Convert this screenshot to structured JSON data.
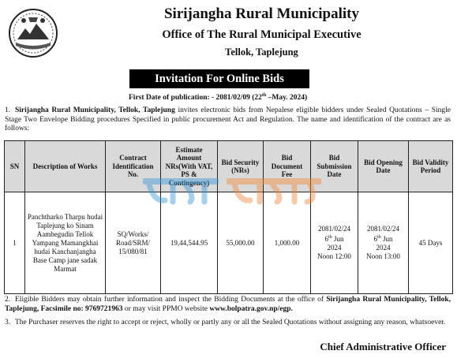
{
  "header": {
    "org_name": "Sirijangha Rural Municipality",
    "office": "Office of The Rural Municipal Executive",
    "location": "Tellok, Taplejung"
  },
  "banner": "Invitation For Online Bids",
  "publication": {
    "label": "First Date of   publication: - 2081/02/09 (22",
    "sup": "th",
    "rest": " –May.  2024)"
  },
  "para1": {
    "num": "1.",
    "bold": "Sirijangha Rural Municipality, Tellok, Taplejung",
    "text": " invites electronic bids from Nepalese eligible bidders under Sealed Quotations – Single Stage Two Envelope Bidding procedures Specified in public procurement Act and Regulation. The name and identification of the contract are as follows:"
  },
  "table": {
    "headers": [
      "SN",
      "Description of Works",
      "Contract Identification No.",
      "Estimate Amount NRs(With VAT, PS & Contingency)",
      "Bid Security (NRs)",
      "Bid Document Fee",
      "Bid Submission Date",
      "Bid Opening Date",
      "Bid Validity Period"
    ],
    "row": {
      "sn": "1",
      "description": "Panchtharko Tharpu hudai Taplejung ko Sinam Aambegudin Tellok Yampang Mamangkhai hudai Kanchanjangha Base  Camp jane sadak Marmat",
      "contract_id": "SQ/Works/ Road/SRM/ 15/080/81",
      "estimate": "19,44,544.95",
      "bid_security": "55,000.00",
      "doc_fee": "1,000.00",
      "submission": {
        "date": "2081/02/24",
        "day": "6",
        "sup": "th",
        "month": " Jun",
        "year": "2024",
        "time": "Noon 12:00"
      },
      "opening": {
        "date": "2081/02/24",
        "day": "6",
        "sup": "th",
        "month": " Jun",
        "year": "2024",
        "time": "Noon 13:00"
      },
      "validity": "45 Days"
    }
  },
  "para2": {
    "num": "2.",
    "text1": "Eligible Bidders may obtain further information and inspect the Bidding Documents at the office of ",
    "bold1": "Sirijangha Rural Municipality, Tellok, Taplejung, Facsimile no: 9769721963",
    "text2": " or may visit PPMO website ",
    "bold2": "www.bolpatra.gov.np/egp."
  },
  "para3": {
    "num": "3.",
    "text": "The Purchaser reserves the right to accept or reject, wholly or partly any or all the Sealed Quotations without assigning   any reason, whatsoever."
  },
  "signature": "Chief Administrative Officer",
  "colors": {
    "banner_bg": "#000000",
    "header_bg": "#d9d9d9",
    "watermark_blue": "#3a9ad9",
    "watermark_orange": "#f08a3c"
  },
  "icons": {
    "emblem": "nepal-emblem-icon"
  }
}
